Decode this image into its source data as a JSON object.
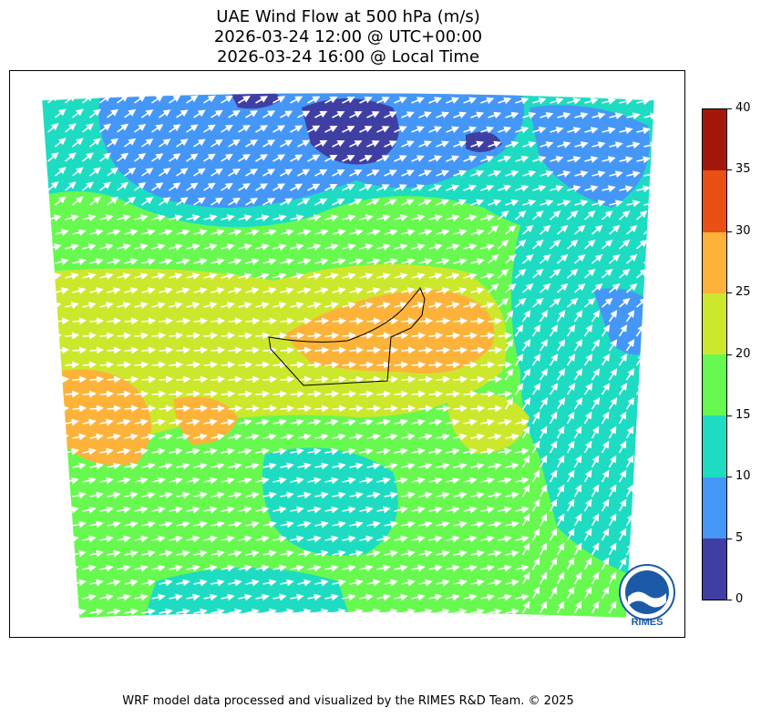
{
  "title": {
    "line1": "UAE Wind Flow at 500 hPa (m/s)",
    "line2": "2026-03-24 12:00 @ UTC+00:00",
    "line3": "2026-03-24 16:00 @ Local Time"
  },
  "colorbar": {
    "ticks": [
      "0",
      "5",
      "10",
      "15",
      "20",
      "25",
      "30",
      "35",
      "40"
    ],
    "colors": [
      "#3f3fa3",
      "#4597f7",
      "#1edcc1",
      "#67f94f",
      "#cde72d",
      "#fdb33a",
      "#e95114",
      "#a3180a"
    ]
  },
  "logo": {
    "text": "RIMES"
  },
  "footer": {
    "credit": "WRF model data processed and visualized by the RIMES R&D Team. © 2025"
  }
}
